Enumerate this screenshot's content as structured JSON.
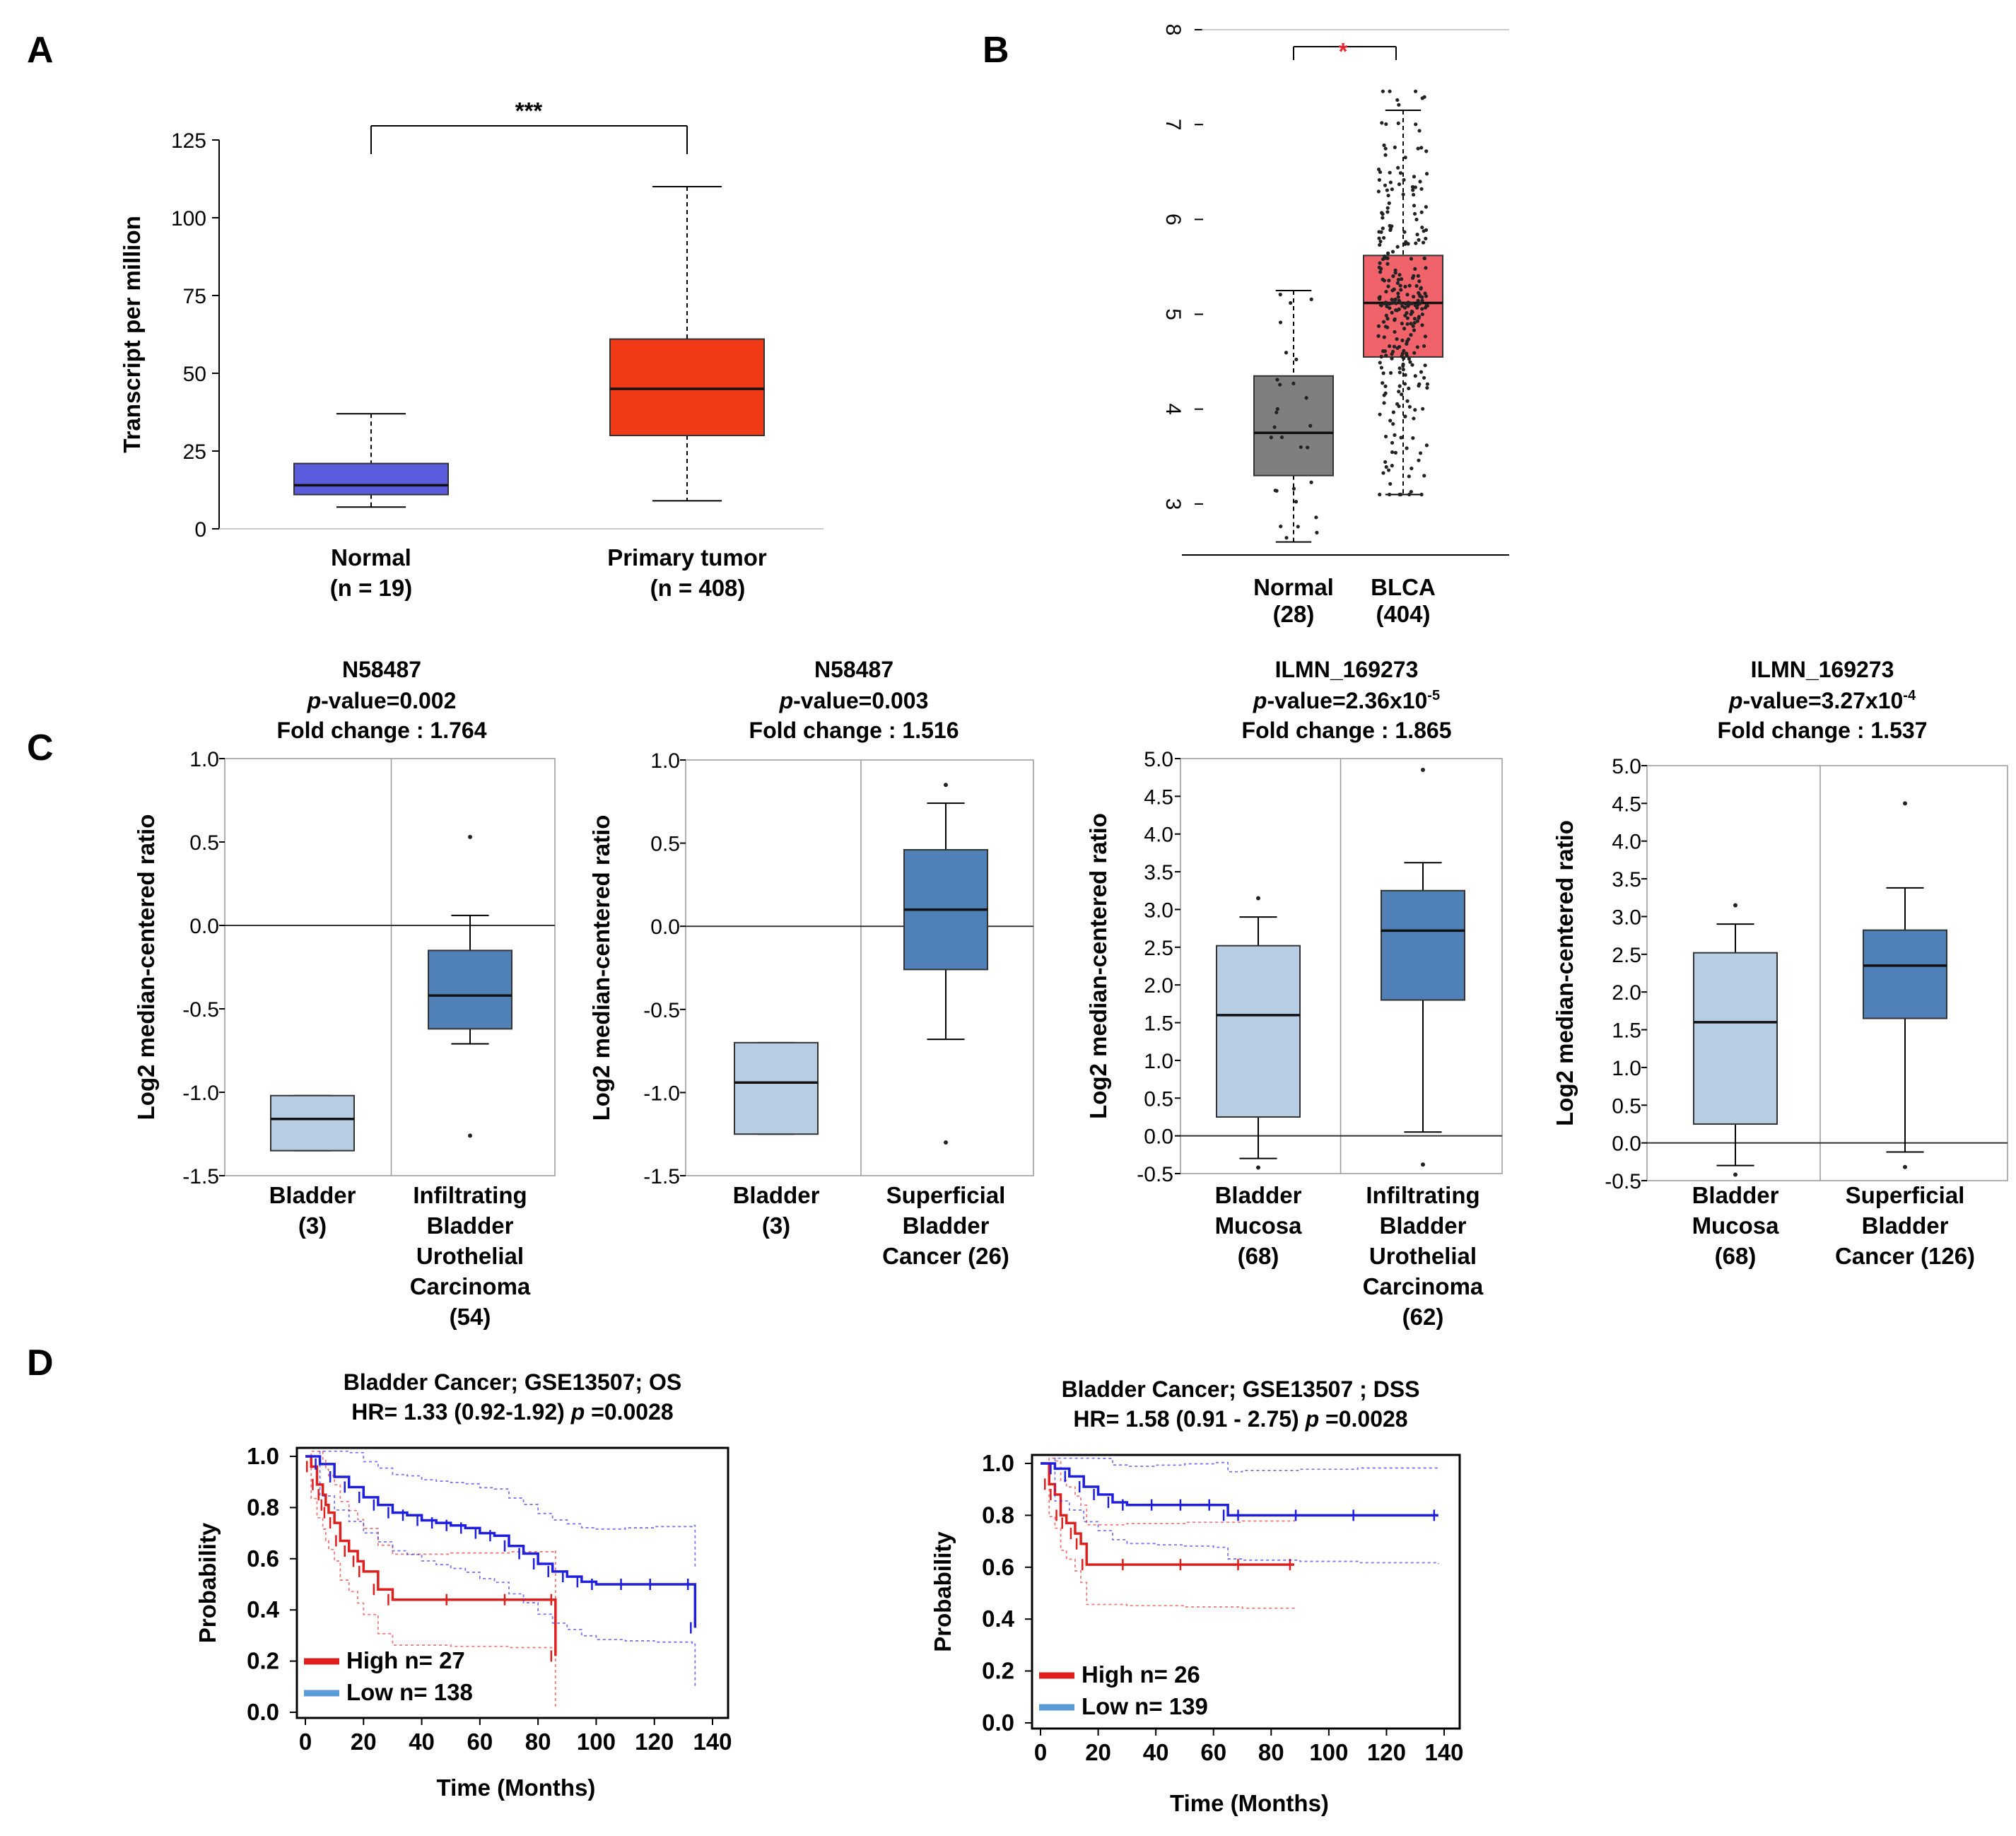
{
  "figure": {
    "panel_labels": [
      "A",
      "B",
      "C",
      "D"
    ]
  },
  "chart_data": [
    {
      "id": "A",
      "type": "box",
      "title": "",
      "ylabel": "Transcript per million",
      "ylim": [
        0,
        125
      ],
      "yticks": [
        "0",
        "25",
        "50",
        "75",
        "100",
        "125"
      ],
      "categories": [
        {
          "name": "Normal",
          "n_label": "(n = 19)",
          "color": "#5b5bdd",
          "min": 7,
          "q1": 11,
          "median": 14,
          "q3": 21,
          "max": 37
        },
        {
          "name": "Primary tumor",
          "n_label": "(n = 408)",
          "color": "#f03a17",
          "min": 9,
          "q1": 30,
          "median": 45,
          "q3": 61,
          "max": 110
        }
      ],
      "significance": "***"
    },
    {
      "id": "B",
      "type": "box",
      "ylim": [
        2.5,
        8
      ],
      "yticks": [
        "3",
        "4",
        "5",
        "6",
        "7",
        "8"
      ],
      "categories": [
        {
          "name": "Normal",
          "n_label": "(28)",
          "color": "#7f7f7f",
          "min": 2.6,
          "q1": 3.3,
          "median": 3.75,
          "q3": 4.35,
          "max": 5.25
        },
        {
          "name": "BLCA",
          "n_label": "(404)",
          "color": "#f0636b",
          "min": 3.1,
          "q1": 4.55,
          "median": 5.12,
          "q3": 5.62,
          "max": 7.15
        }
      ],
      "significance": "*",
      "significance_color": "#e8262e"
    },
    {
      "id": "C1",
      "type": "box",
      "title_lines": [
        "N58487",
        "p-value=0.002",
        "Fold change : 1.764"
      ],
      "ylabel": "Log2 median-centered ratio",
      "ylim": [
        -1.5,
        1.0
      ],
      "yticks": [
        "-1.5",
        "-1.0",
        "-0.5",
        "0.0",
        "0.5",
        "1.0"
      ],
      "categories": [
        {
          "label_lines": [
            "Bladder",
            "(3)"
          ],
          "color": "#b7cde3",
          "min": -1.35,
          "q1": -1.35,
          "median": -1.16,
          "q3": -1.02,
          "max": -1.02
        },
        {
          "label_lines": [
            "Infiltrating",
            "Bladder",
            "Urothelial",
            "Carcinoma",
            "(54)"
          ],
          "color": "#4f81b8",
          "min": -0.71,
          "q1": -0.62,
          "median": -0.42,
          "q3": -0.15,
          "max": 0.06,
          "outliers": [
            0.53,
            -1.26
          ]
        }
      ]
    },
    {
      "id": "C2",
      "type": "box",
      "title_lines": [
        "N58487",
        "p-value=0.003",
        "Fold change : 1.516"
      ],
      "ylabel": "Log2 median-centered ratio",
      "ylim": [
        -1.5,
        1.0
      ],
      "yticks": [
        "-1.5",
        "-1.0",
        "-0.5",
        "0.0",
        "0.5",
        "1.0"
      ],
      "categories": [
        {
          "label_lines": [
            "Bladder",
            "(3)"
          ],
          "color": "#b7cde3",
          "min": -1.25,
          "q1": -1.25,
          "median": -0.94,
          "q3": -0.7,
          "max": -0.7
        },
        {
          "label_lines": [
            "Superficial",
            "Bladder",
            "Cancer (26)"
          ],
          "color": "#4f81b8",
          "min": -0.68,
          "q1": -0.26,
          "median": 0.1,
          "q3": 0.46,
          "max": 0.74,
          "outliers": [
            0.85,
            -1.3
          ]
        }
      ]
    },
    {
      "id": "C3",
      "type": "box",
      "title_lines": [
        "ILMN_169273",
        "p-value=2.36x10",
        "Fold change : 1.865"
      ],
      "title_superscript": "-5",
      "ylabel": "Log2 median-centered ratio",
      "ylim": [
        -0.5,
        5.0
      ],
      "yticks": [
        "-0.5",
        "0.0",
        "0.5",
        "1.0",
        "1.5",
        "2.0",
        "2.5",
        "3.0",
        "3.5",
        "4.0",
        "4.5",
        "5.0"
      ],
      "categories": [
        {
          "label_lines": [
            "Bladder",
            "Mucosa",
            "(68)"
          ],
          "color": "#b7cde3",
          "min": -0.3,
          "q1": 0.25,
          "median": 1.6,
          "q3": 2.52,
          "max": 2.9,
          "outliers": [
            3.15,
            -0.42
          ]
        },
        {
          "label_lines": [
            "Infiltrating",
            "Bladder",
            "Urothelial",
            "Carcinoma",
            "(62)"
          ],
          "color": "#4f81b8",
          "min": 0.05,
          "q1": 1.8,
          "median": 2.72,
          "q3": 3.25,
          "max": 3.62,
          "outliers": [
            4.85,
            -0.38
          ]
        }
      ]
    },
    {
      "id": "C4",
      "type": "box",
      "title_lines": [
        "ILMN_169273",
        "p-value=3.27x10",
        "Fold change : 1.537"
      ],
      "title_superscript": "-4",
      "ylabel": "Log2 median-centered ratio",
      "ylim": [
        -0.5,
        5.0
      ],
      "yticks": [
        "-0.5",
        "0.0",
        "0.5",
        "1.0",
        "1.5",
        "2.0",
        "2.5",
        "3.0",
        "3.5",
        "4.0",
        "4.5",
        "5.0"
      ],
      "categories": [
        {
          "label_lines": [
            "Bladder",
            "Mucosa",
            "(68)"
          ],
          "color": "#b7cde3",
          "min": -0.3,
          "q1": 0.25,
          "median": 1.6,
          "q3": 2.52,
          "max": 2.9,
          "outliers": [
            3.15,
            -0.42
          ]
        },
        {
          "label_lines": [
            "Superficial",
            "Bladder",
            "Cancer (126)"
          ],
          "color": "#4f81b8",
          "min": -0.12,
          "q1": 1.65,
          "median": 2.35,
          "q3": 2.82,
          "max": 3.38,
          "outliers": [
            4.5,
            -0.32
          ]
        }
      ]
    },
    {
      "id": "D1",
      "type": "line",
      "title_lines": [
        "Bladder Cancer; GSE13507;  OS",
        "HR= 1.33 (0.92-1.92)  p =0.0028"
      ],
      "xlabel": "Time (Months)",
      "ylabel": "Probability",
      "xlim": [
        0,
        140
      ],
      "ylim": [
        0,
        1
      ],
      "xticks": [
        "0",
        "20",
        "40",
        "60",
        "80",
        "100",
        "120",
        "140"
      ],
      "yticks": [
        "0.0",
        "0.2",
        "0.4",
        "0.6",
        "0.8",
        "1.0"
      ],
      "series": [
        {
          "name": "High n= 27",
          "color": "#e01e1e",
          "x": [
            0,
            2,
            4,
            6,
            7,
            8,
            10,
            12,
            15,
            18,
            20,
            25,
            30,
            50,
            70,
            86,
            86
          ],
          "y": [
            1.0,
            0.96,
            0.89,
            0.85,
            0.81,
            0.78,
            0.74,
            0.67,
            0.63,
            0.59,
            0.55,
            0.48,
            0.44,
            0.44,
            0.44,
            0.44,
            0.22
          ]
        },
        {
          "name": "Low n= 138",
          "color": "#1e1ee0",
          "x": [
            0,
            5,
            10,
            15,
            20,
            25,
            30,
            35,
            40,
            45,
            50,
            55,
            60,
            65,
            70,
            75,
            80,
            85,
            90,
            95,
            100,
            110,
            120,
            133,
            134
          ],
          "y": [
            1.0,
            0.97,
            0.92,
            0.88,
            0.84,
            0.81,
            0.78,
            0.77,
            0.75,
            0.74,
            0.73,
            0.72,
            0.7,
            0.69,
            0.65,
            0.62,
            0.58,
            0.55,
            0.53,
            0.51,
            0.5,
            0.5,
            0.5,
            0.5,
            0.33
          ]
        }
      ]
    },
    {
      "id": "D2",
      "type": "line",
      "title_lines": [
        "Bladder Cancer; GSE13507 ; DSS",
        "HR= 1.58 (0.91 - 2.75)  p =0.0028"
      ],
      "xlabel": "Time (Months)",
      "ylabel": "Probability",
      "xlim": [
        0,
        140
      ],
      "ylim": [
        0,
        1
      ],
      "xticks": [
        "0",
        "20",
        "40",
        "60",
        "80",
        "100",
        "120",
        "140"
      ],
      "yticks": [
        "0.0",
        "0.2",
        "0.4",
        "0.6",
        "0.8",
        "1.0"
      ],
      "series": [
        {
          "name": "High n= 26",
          "color": "#e01e1e",
          "x": [
            0,
            3,
            5,
            7,
            9,
            12,
            14,
            16,
            30,
            50,
            70,
            88
          ],
          "y": [
            1.0,
            0.92,
            0.88,
            0.8,
            0.77,
            0.73,
            0.69,
            0.61,
            0.61,
            0.61,
            0.61,
            0.61
          ]
        },
        {
          "name": "Low n= 139",
          "color": "#1e1ee0",
          "x": [
            0,
            5,
            10,
            15,
            20,
            25,
            30,
            40,
            50,
            60,
            65,
            70,
            90,
            110,
            138
          ],
          "y": [
            1.0,
            0.98,
            0.95,
            0.91,
            0.88,
            0.85,
            0.84,
            0.84,
            0.84,
            0.84,
            0.8,
            0.8,
            0.8,
            0.8,
            0.8
          ]
        }
      ]
    }
  ]
}
